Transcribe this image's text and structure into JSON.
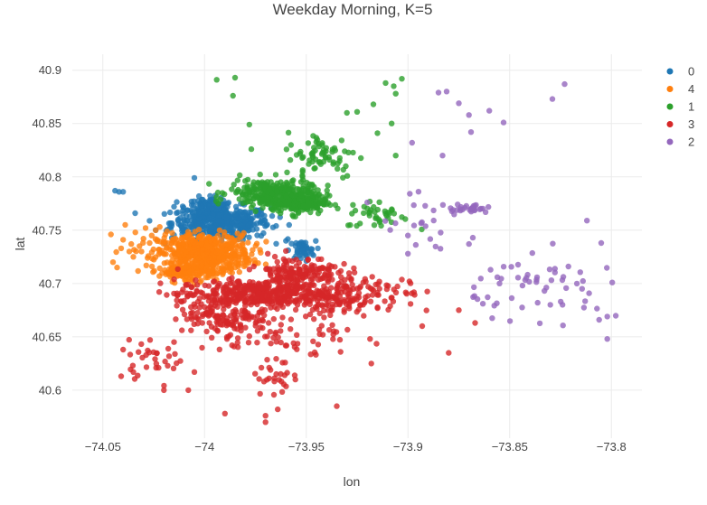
{
  "chart_data": {
    "type": "scatter",
    "title": "Weekday Morning, K=5",
    "xlabel": "lon",
    "ylabel": "lat",
    "xlim": [
      -74.065,
      -73.785
    ],
    "ylim": [
      40.555,
      40.915
    ],
    "x_ticks": [
      -74.05,
      -74.0,
      -73.95,
      -73.9,
      -73.85,
      -73.8
    ],
    "x_tick_labels": [
      "−74.05",
      "−74",
      "−73.95",
      "−73.9",
      "−73.85",
      "−73.8"
    ],
    "y_ticks": [
      40.6,
      40.65,
      40.7,
      40.75,
      40.8,
      40.85,
      40.9
    ],
    "y_tick_labels": [
      "40.6",
      "40.65",
      "40.7",
      "40.75",
      "40.8",
      "40.85",
      "40.9"
    ],
    "grid": true,
    "legend_position": "top-right",
    "legend_order": [
      "0",
      "4",
      "1",
      "3",
      "2"
    ],
    "series": [
      {
        "name": "0",
        "color": "#1f77b4",
        "regions": [
          {
            "cx": -73.992,
            "cy": 40.757,
            "rx": 0.022,
            "ry": 0.014,
            "n": 460
          },
          {
            "cx": -73.998,
            "cy": 40.772,
            "rx": 0.01,
            "ry": 0.008,
            "n": 90
          },
          {
            "cx": -73.952,
            "cy": 40.731,
            "rx": 0.006,
            "ry": 0.008,
            "n": 45
          }
        ],
        "outliers": [
          [
            -74.044,
            40.787
          ],
          [
            -74.042,
            40.786
          ],
          [
            -74.04,
            40.786
          ],
          [
            -74.015,
            40.772
          ],
          [
            -74.005,
            40.799
          ],
          [
            -73.96,
            40.74
          ],
          [
            -73.955,
            40.738
          ]
        ]
      },
      {
        "name": "4",
        "color": "#ff7f0e",
        "regions": [
          {
            "cx": -74.0,
            "cy": 40.728,
            "rx": 0.021,
            "ry": 0.017,
            "n": 560
          },
          {
            "cx": -74.009,
            "cy": 40.711,
            "rx": 0.012,
            "ry": 0.006,
            "n": 120
          }
        ],
        "outliers": [
          [
            -74.046,
            40.746
          ],
          [
            -74.045,
            40.72
          ],
          [
            -74.043,
            40.715
          ],
          [
            -74.04,
            40.741
          ],
          [
            -74.039,
            40.755
          ],
          [
            -74.037,
            40.73
          ],
          [
            -74.035,
            40.725
          ],
          [
            -74.034,
            40.748
          ],
          [
            -74.032,
            40.735
          ],
          [
            -74.03,
            40.742
          ],
          [
            -74.029,
            40.752
          ],
          [
            -74.027,
            40.738
          ],
          [
            -74.026,
            40.745
          ],
          [
            -74.024,
            40.75
          ],
          [
            -74.022,
            40.753
          ],
          [
            -74.036,
            40.737
          ],
          [
            -74.041,
            40.733
          ],
          [
            -74.031,
            40.73
          ],
          [
            -74.028,
            40.724
          ]
        ]
      },
      {
        "name": "1",
        "color": "#2ca02c",
        "regions": [
          {
            "cx": -73.968,
            "cy": 40.785,
            "rx": 0.018,
            "ry": 0.012,
            "n": 240
          },
          {
            "cx": -73.953,
            "cy": 40.776,
            "rx": 0.012,
            "ry": 0.01,
            "n": 200
          },
          {
            "cx": -73.942,
            "cy": 40.82,
            "rx": 0.016,
            "ry": 0.02,
            "n": 70
          },
          {
            "cx": -73.915,
            "cy": 40.765,
            "rx": 0.014,
            "ry": 0.012,
            "n": 40
          }
        ],
        "outliers": [
          [
            -73.994,
            40.891
          ],
          [
            -73.985,
            40.893
          ],
          [
            -73.986,
            40.876
          ],
          [
            -73.978,
            40.849
          ],
          [
            -73.977,
            40.826
          ],
          [
            -73.911,
            40.888
          ],
          [
            -73.907,
            40.885
          ],
          [
            -73.903,
            40.892
          ],
          [
            -73.906,
            40.878
          ],
          [
            -73.917,
            40.868
          ],
          [
            -73.925,
            40.861
          ],
          [
            -73.906,
            40.82
          ],
          [
            -73.908,
            40.85
          ],
          [
            -73.915,
            40.841
          ],
          [
            -73.93,
            40.86
          ]
        ]
      },
      {
        "name": "3",
        "color": "#d62728",
        "regions": [
          {
            "cx": -73.955,
            "cy": 40.71,
            "rx": 0.018,
            "ry": 0.015,
            "n": 150
          },
          {
            "cx": -73.975,
            "cy": 40.69,
            "rx": 0.035,
            "ry": 0.012,
            "n": 380
          },
          {
            "cx": -73.99,
            "cy": 40.67,
            "rx": 0.02,
            "ry": 0.013,
            "n": 120
          },
          {
            "cx": -73.935,
            "cy": 40.69,
            "rx": 0.015,
            "ry": 0.02,
            "n": 110
          },
          {
            "cx": -73.965,
            "cy": 40.65,
            "rx": 0.035,
            "ry": 0.02,
            "n": 70
          },
          {
            "cx": -74.025,
            "cy": 40.63,
            "rx": 0.015,
            "ry": 0.015,
            "n": 30
          },
          {
            "cx": -73.965,
            "cy": 40.61,
            "rx": 0.01,
            "ry": 0.015,
            "n": 25
          },
          {
            "cx": -73.91,
            "cy": 40.69,
            "rx": 0.015,
            "ry": 0.02,
            "n": 40
          }
        ],
        "outliers": [
          [
            -74.041,
            40.613
          ],
          [
            -74.035,
            40.617
          ],
          [
            -74.02,
            40.6
          ],
          [
            -74.008,
            40.6
          ],
          [
            -73.99,
            40.578
          ],
          [
            -73.97,
            40.576
          ],
          [
            -73.964,
            40.582
          ],
          [
            -73.935,
            40.585
          ],
          [
            -73.918,
            40.625
          ],
          [
            -73.893,
            40.66
          ],
          [
            -73.875,
            40.675
          ],
          [
            -73.88,
            40.635
          ],
          [
            -73.867,
            40.663
          ],
          [
            -74.005,
            40.617
          ],
          [
            -74.04,
            40.638
          ],
          [
            -74.015,
            40.645
          ],
          [
            -73.97,
            40.57
          ]
        ]
      },
      {
        "name": "2",
        "color": "#9467bd",
        "regions": [
          {
            "cx": -73.87,
            "cy": 40.77,
            "rx": 0.01,
            "ry": 0.004,
            "n": 30
          },
          {
            "cx": -73.84,
            "cy": 40.7,
            "rx": 0.025,
            "ry": 0.025,
            "n": 40
          },
          {
            "cx": -73.89,
            "cy": 40.75,
            "rx": 0.025,
            "ry": 0.025,
            "n": 20
          },
          {
            "cx": -73.81,
            "cy": 40.69,
            "rx": 0.015,
            "ry": 0.03,
            "n": 15
          }
        ],
        "outliers": [
          [
            -73.885,
            40.879
          ],
          [
            -73.881,
            40.88
          ],
          [
            -73.875,
            40.869
          ],
          [
            -73.87,
            40.858
          ],
          [
            -73.86,
            40.862
          ],
          [
            -73.853,
            40.851
          ],
          [
            -73.823,
            40.887
          ],
          [
            -73.829,
            40.873
          ],
          [
            -73.898,
            40.832
          ],
          [
            -73.883,
            40.82
          ],
          [
            -73.869,
            40.842
          ],
          [
            -73.812,
            40.759
          ],
          [
            -73.805,
            40.738
          ],
          [
            -73.802,
            40.669
          ],
          [
            -73.802,
            40.648
          ],
          [
            -73.806,
            40.666
          ],
          [
            -73.83,
            40.68
          ],
          [
            -73.824,
            40.68
          ],
          [
            -73.9,
            40.745
          ],
          [
            -73.92,
            40.776
          ],
          [
            -73.9,
            40.728
          ],
          [
            -73.87,
            40.737
          ],
          [
            -73.855,
            40.7
          ]
        ]
      }
    ]
  }
}
